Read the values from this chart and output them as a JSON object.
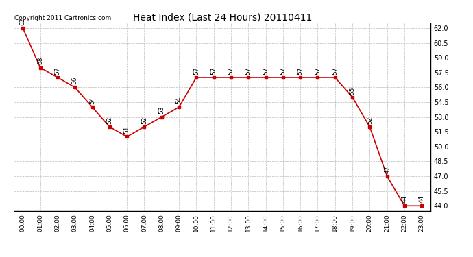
{
  "title": "Heat Index (Last 24 Hours) 20110411",
  "copyright": "Copyright 2011 Cartronics.com",
  "hours": [
    "00:00",
    "01:00",
    "02:00",
    "03:00",
    "04:00",
    "05:00",
    "06:00",
    "07:00",
    "08:00",
    "09:00",
    "10:00",
    "11:00",
    "12:00",
    "13:00",
    "14:00",
    "15:00",
    "16:00",
    "17:00",
    "18:00",
    "19:00",
    "20:00",
    "21:00",
    "22:00",
    "23:00"
  ],
  "values": [
    62,
    58,
    57,
    56,
    54,
    52,
    51,
    52,
    53,
    54,
    57,
    57,
    57,
    57,
    57,
    57,
    57,
    57,
    57,
    55,
    52,
    47,
    44,
    44
  ],
  "ylim_min": 43.5,
  "ylim_max": 62.5,
  "yticks": [
    44.0,
    45.5,
    47.0,
    48.5,
    50.0,
    51.5,
    53.0,
    54.5,
    56.0,
    57.5,
    59.0,
    60.5,
    62.0
  ],
  "line_color": "#cc0000",
  "marker_color": "#cc0000",
  "bg_color": "#ffffff",
  "grid_color": "#bbbbbb",
  "title_fontsize": 10,
  "label_fontsize": 6.5,
  "copyright_fontsize": 6.5
}
